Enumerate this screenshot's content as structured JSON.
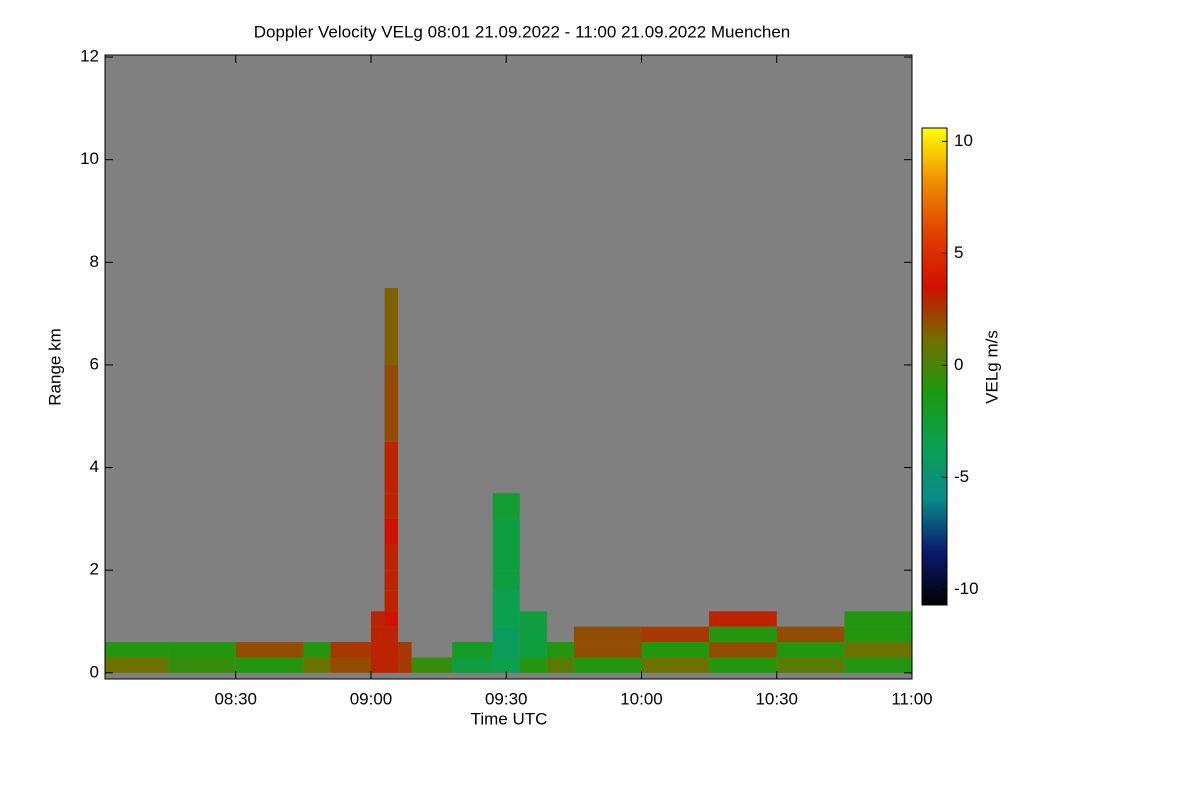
{
  "chart_data": {
    "type": "heatmap",
    "title": "Doppler Velocity VELg   08:01 21.09.2022 - 11:00 21.09.2022 Muenchen",
    "x_label": "Time UTC",
    "y_label": "Range km",
    "colorbar_label": "VELg m/s",
    "background": "#808080",
    "xlim": [
      8.0167,
      11.0
    ],
    "xticks": [
      {
        "value": 8.5,
        "label": "08:30"
      },
      {
        "value": 9.0,
        "label": "09:00"
      },
      {
        "value": 9.5,
        "label": "09:30"
      },
      {
        "value": 10.0,
        "label": "10:00"
      },
      {
        "value": 10.5,
        "label": "10:30"
      },
      {
        "value": 11.0,
        "label": "11:00"
      }
    ],
    "ylim": [
      -0.12,
      12.04
    ],
    "yticks": [
      0,
      2,
      4,
      6,
      8,
      10,
      12
    ],
    "clim": [
      -10.7,
      10.6
    ],
    "cticks": [
      -10,
      -5,
      0,
      5,
      10
    ],
    "colormap": [
      "#000000",
      "#0a1a6e",
      "#0a8a8a",
      "#0aa050",
      "#1a9a10",
      "#707000",
      "#d01000",
      "#e04000",
      "#f09000",
      "#ffff00"
    ],
    "x_edges": [
      8.0167,
      8.25,
      8.5,
      8.75,
      8.85,
      9.0,
      9.05,
      9.1,
      9.15,
      9.3,
      9.45,
      9.55,
      9.65,
      9.75,
      10.0,
      10.25,
      10.5,
      10.75,
      11.0
    ],
    "y_edges": [
      0,
      0.3,
      0.6,
      0.9,
      1.2,
      1.6,
      2.0,
      2.5,
      3.0,
      3.5,
      4.5,
      6.0,
      7.5
    ],
    "z": [
      [
        1,
        -0.5,
        -1,
        1,
        2,
        3,
        3,
        2.5,
        -0.5,
        -3,
        -3.5,
        -1,
        0.5,
        -1,
        1,
        -1,
        0.5,
        -1
      ],
      [
        -1,
        -1,
        2,
        -1,
        2.5,
        3,
        3,
        2.5,
        null,
        -2,
        -4,
        -3,
        -1,
        2,
        -1,
        2,
        -1,
        1
      ],
      [
        null,
        null,
        null,
        null,
        null,
        3,
        3,
        null,
        null,
        null,
        -4,
        -3,
        null,
        2,
        2.5,
        -1,
        2,
        -1
      ],
      [
        null,
        null,
        null,
        null,
        null,
        3,
        3.5,
        null,
        null,
        null,
        -3.5,
        -3,
        null,
        null,
        null,
        3,
        null,
        -1
      ],
      [
        null,
        null,
        null,
        null,
        null,
        null,
        3,
        null,
        null,
        null,
        -3.5,
        null,
        null,
        null,
        null,
        null,
        null,
        null
      ],
      [
        null,
        null,
        null,
        null,
        null,
        null,
        3,
        null,
        null,
        null,
        -3,
        null,
        null,
        null,
        null,
        null,
        null,
        null
      ],
      [
        null,
        null,
        null,
        null,
        null,
        null,
        3,
        null,
        null,
        null,
        -3,
        null,
        null,
        null,
        null,
        null,
        null,
        null
      ],
      [
        null,
        null,
        null,
        null,
        null,
        null,
        3.5,
        null,
        null,
        null,
        -3,
        null,
        null,
        null,
        null,
        null,
        null,
        null
      ],
      [
        null,
        null,
        null,
        null,
        null,
        null,
        3,
        null,
        null,
        null,
        -2.5,
        null,
        null,
        null,
        null,
        null,
        null,
        null
      ],
      [
        null,
        null,
        null,
        null,
        null,
        null,
        3,
        null,
        null,
        null,
        null,
        null,
        null,
        null,
        null,
        null,
        null,
        null
      ],
      [
        null,
        null,
        null,
        null,
        null,
        null,
        2,
        null,
        null,
        null,
        null,
        null,
        null,
        null,
        null,
        null,
        null,
        null
      ],
      [
        null,
        null,
        null,
        null,
        null,
        null,
        1.5,
        null,
        null,
        null,
        null,
        null,
        null,
        null,
        null,
        null,
        null,
        null
      ]
    ]
  }
}
